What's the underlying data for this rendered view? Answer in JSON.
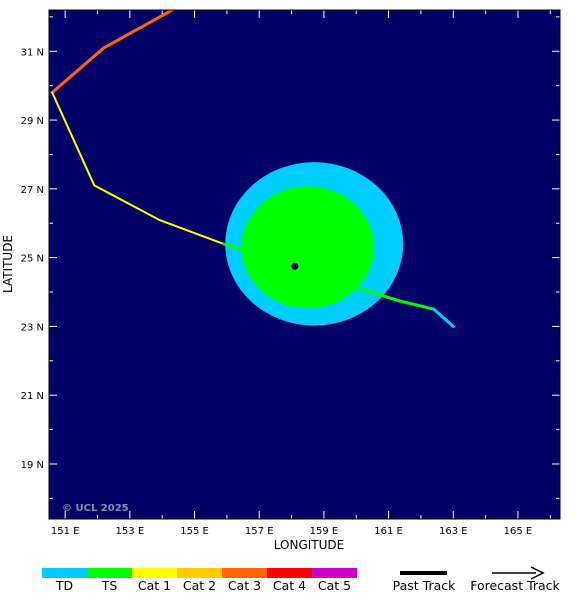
{
  "map": {
    "copyright": "© UCL 2025",
    "xlabel": "LONGITUDE",
    "ylabel": "LATITUDE",
    "lon_range": [
      150.5,
      166.3
    ],
    "lat_range": [
      17.4,
      32.2
    ],
    "lon_ticks": [
      {
        "value": 151,
        "label": "151 E"
      },
      {
        "value": 153,
        "label": "153 E"
      },
      {
        "value": 155,
        "label": "155 E"
      },
      {
        "value": 157,
        "label": "157 E"
      },
      {
        "value": 159,
        "label": "159 E"
      },
      {
        "value": 161,
        "label": "161 E"
      },
      {
        "value": 163,
        "label": "163 E"
      },
      {
        "value": 165,
        "label": "165 E"
      }
    ],
    "lat_ticks": [
      {
        "value": 19,
        "label": "19 N"
      },
      {
        "value": 21,
        "label": "21 N"
      },
      {
        "value": 23,
        "label": "23 N"
      },
      {
        "value": 25,
        "label": "25 N"
      },
      {
        "value": 27,
        "label": "27 N"
      },
      {
        "value": 29,
        "label": "29 N"
      },
      {
        "value": 31,
        "label": "31 N"
      }
    ],
    "colors": {
      "ocean": "#000066",
      "TD": "#00ccff",
      "TS": "#00ff00",
      "Cat 1": "#ffff00",
      "Cat 2": "#ffcc00",
      "Cat 3": "#ff6600",
      "Cat 4": "#ff0000",
      "Cat 5": "#cc00cc"
    },
    "wind_fields": [
      {
        "category": "TD",
        "center": [
          158.7,
          25.4
        ],
        "radius_deg": [
          5.5,
          4.75
        ]
      },
      {
        "category": "TS",
        "center": [
          158.5,
          25.3
        ],
        "radius_deg": [
          4.1,
          3.55
        ]
      }
    ],
    "storm_center": [
      158.1,
      24.75
    ],
    "past_track": [
      {
        "category": "Cat 3",
        "points": [
          [
            154.5,
            32.3
          ],
          [
            152.2,
            31.1
          ],
          [
            150.6,
            29.8
          ]
        ]
      },
      {
        "category": "Cat 1",
        "points": [
          [
            150.6,
            29.8
          ],
          [
            151.9,
            27.1
          ],
          [
            153.9,
            26.1
          ],
          [
            155.9,
            25.4
          ],
          [
            157.5,
            24.9
          ],
          [
            158.1,
            24.75
          ],
          [
            160.1,
            24.1
          ]
        ]
      },
      {
        "category": "TS",
        "points": [
          [
            155.9,
            25.4
          ],
          [
            157.5,
            24.9
          ],
          [
            158.1,
            24.75
          ],
          [
            160.1,
            24.1
          ],
          [
            161.3,
            23.75
          ],
          [
            162.4,
            23.5
          ]
        ]
      },
      {
        "category": "TD",
        "points": [
          [
            162.4,
            23.5
          ],
          [
            163.0,
            23.0
          ]
        ]
      }
    ]
  },
  "legend": {
    "categories": [
      {
        "key": "TD",
        "label": "TD"
      },
      {
        "key": "TS",
        "label": "TS"
      },
      {
        "key": "Cat 1",
        "label": "Cat 1"
      },
      {
        "key": "Cat 2",
        "label": "Cat 2"
      },
      {
        "key": "Cat 3",
        "label": "Cat 3"
      },
      {
        "key": "Cat 4",
        "label": "Cat 4"
      },
      {
        "key": "Cat 5",
        "label": "Cat 5"
      }
    ],
    "past_track_label": "Past Track",
    "forecast_track_label": "Forecast Track"
  }
}
